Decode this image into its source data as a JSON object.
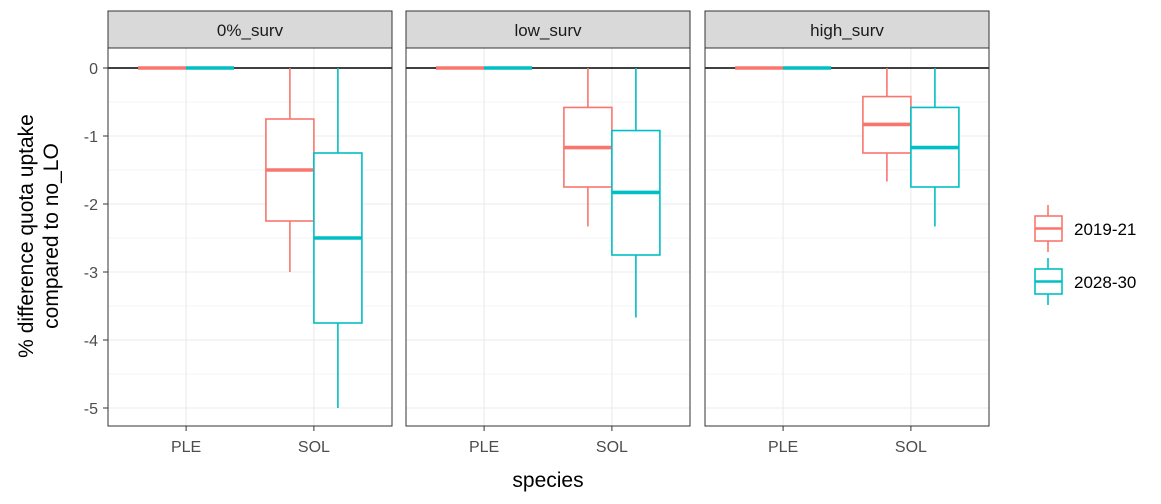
{
  "chart_data": {
    "type": "boxplot",
    "xlabel": "species",
    "ylabel_lines": [
      "% difference quota uptake",
      "compared to no_LO"
    ],
    "ylim": [
      -5.2,
      0.3
    ],
    "yticks": [
      0,
      -1,
      -2,
      -3,
      -4,
      -5
    ],
    "ytick_labels": [
      "0",
      "-1",
      "-2",
      "-3",
      "-4",
      "-5"
    ],
    "categories": [
      "PLE",
      "SOL"
    ],
    "reference_line": 0,
    "series_colors": {
      "2019-21": "#F8766D",
      "2028-30": "#00BFC4"
    },
    "legend": {
      "position": "right",
      "entries": [
        "2019-21",
        "2028-30"
      ]
    },
    "facets": [
      {
        "label": "0%_surv",
        "boxes": [
          {
            "category": "PLE",
            "series": "2019-21",
            "min": 0,
            "q1": 0,
            "median": 0,
            "q3": 0,
            "max": 0
          },
          {
            "category": "PLE",
            "series": "2028-30",
            "min": 0,
            "q1": 0,
            "median": 0,
            "q3": 0,
            "max": 0
          },
          {
            "category": "SOL",
            "series": "2019-21",
            "min": -3.0,
            "q1": -2.25,
            "median": -1.5,
            "q3": -0.75,
            "max": 0
          },
          {
            "category": "SOL",
            "series": "2028-30",
            "min": -5.0,
            "q1": -3.75,
            "median": -2.5,
            "q3": -1.25,
            "max": 0
          }
        ]
      },
      {
        "label": "low_surv",
        "boxes": [
          {
            "category": "PLE",
            "series": "2019-21",
            "min": 0,
            "q1": 0,
            "median": 0,
            "q3": 0,
            "max": 0
          },
          {
            "category": "PLE",
            "series": "2028-30",
            "min": 0,
            "q1": 0,
            "median": 0,
            "q3": 0,
            "max": 0
          },
          {
            "category": "SOL",
            "series": "2019-21",
            "min": -2.33,
            "q1": -1.75,
            "median": -1.17,
            "q3": -0.58,
            "max": 0
          },
          {
            "category": "SOL",
            "series": "2028-30",
            "min": -3.67,
            "q1": -2.75,
            "median": -1.83,
            "q3": -0.92,
            "max": 0
          }
        ]
      },
      {
        "label": "high_surv",
        "boxes": [
          {
            "category": "PLE",
            "series": "2019-21",
            "min": 0,
            "q1": 0,
            "median": 0,
            "q3": 0,
            "max": 0
          },
          {
            "category": "PLE",
            "series": "2028-30",
            "min": 0,
            "q1": 0,
            "median": 0,
            "q3": 0,
            "max": 0
          },
          {
            "category": "SOL",
            "series": "2019-21",
            "min": -1.67,
            "q1": -1.25,
            "median": -0.83,
            "q3": -0.42,
            "max": 0
          },
          {
            "category": "SOL",
            "series": "2028-30",
            "min": -2.33,
            "q1": -1.75,
            "median": -1.17,
            "q3": -0.58,
            "max": 0
          }
        ]
      }
    ]
  }
}
